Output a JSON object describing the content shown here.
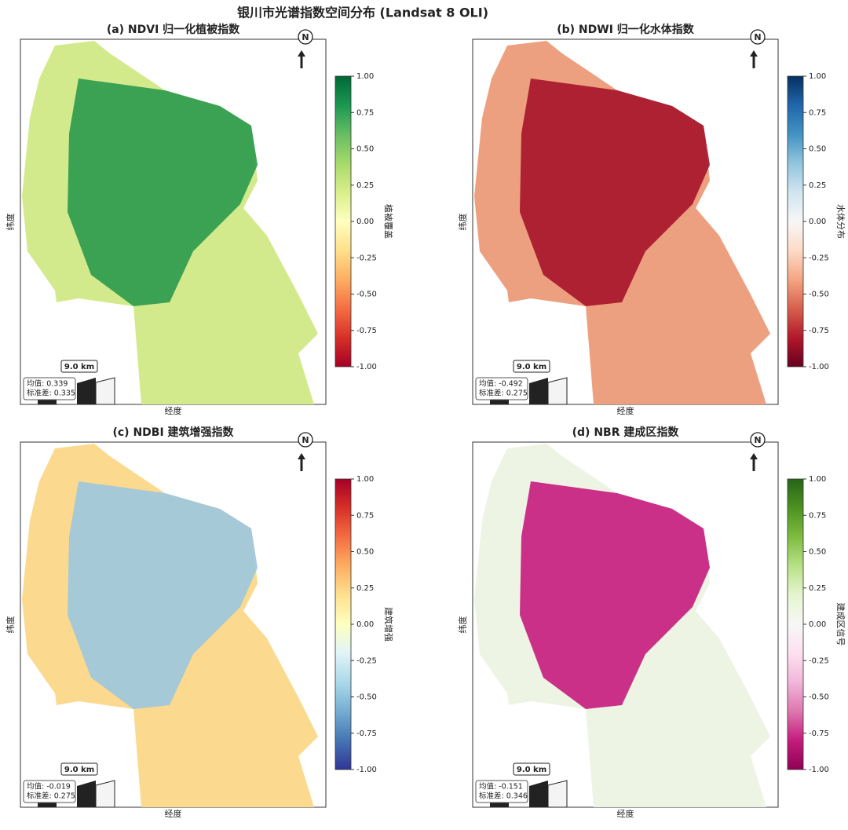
{
  "title": "银川市光谱指数空间分布 (Landsat 8 OLI)",
  "panels": [
    {
      "title": "(a) NDVI 归一化植被指数",
      "xlabel": "经度",
      "ylabel": "纬度",
      "north": "N",
      "scale_label": "9.0 km",
      "stats": [
        "均值: 0.339",
        "标准差: 0.335"
      ],
      "colorbar": {
        "label": "植被覆盖",
        "range": [
          -1,
          1
        ],
        "ticks": [
          {
            "value": 1,
            "label": "1.00"
          },
          {
            "value": 0.75,
            "label": "0.75"
          },
          {
            "value": 0.5,
            "label": "0.50"
          },
          {
            "value": 0.25,
            "label": "0.25"
          },
          {
            "value": 0,
            "label": "0.00"
          },
          {
            "value": -0.25,
            "label": "-0.25"
          },
          {
            "value": -0.5,
            "label": "-0.50"
          },
          {
            "value": -0.75,
            "label": "-0.75"
          },
          {
            "value": -1,
            "label": "-1.00"
          }
        ],
        "colors": [
          "#006837",
          "#1a9850",
          "#66bd63",
          "#a6d96a",
          "#d9ef8b",
          "#ffffbf",
          "#fee08b",
          "#fdae61",
          "#f46d43",
          "#d73027",
          "#a50026"
        ]
      },
      "map_colors": [
        "#d2ea8c",
        "#2a9a4e"
      ]
    },
    {
      "title": "(b) NDWI 归一化水体指数",
      "xlabel": "经度",
      "ylabel": "纬度",
      "north": "N",
      "scale_label": "9.0 km",
      "stats": [
        "均值: -0.492",
        "标准差: 0.275"
      ],
      "colorbar": {
        "label": "水体分布",
        "range": [
          -1,
          1
        ],
        "ticks": [
          {
            "value": 1,
            "label": "1.00"
          },
          {
            "value": 0.75,
            "label": "0.75"
          },
          {
            "value": 0.5,
            "label": "0.50"
          },
          {
            "value": 0.25,
            "label": "0.25"
          },
          {
            "value": 0,
            "label": "0.00"
          },
          {
            "value": -0.25,
            "label": "-0.25"
          },
          {
            "value": -0.5,
            "label": "-0.50"
          },
          {
            "value": -0.75,
            "label": "-0.75"
          },
          {
            "value": -1,
            "label": "-1.00"
          }
        ],
        "colors": [
          "#053061",
          "#2166ac",
          "#4393c3",
          "#92c5de",
          "#d1e5f0",
          "#f7f7f7",
          "#fddbc7",
          "#f4a582",
          "#d6604d",
          "#b2182b",
          "#67001f"
        ]
      },
      "map_colors": [
        "#eda07f",
        "#a5132a"
      ]
    },
    {
      "title": "(c) NDBI 建筑增强指数",
      "xlabel": "经度",
      "ylabel": "纬度",
      "north": "N",
      "scale_label": "9.0 km",
      "stats": [
        "均值: -0.019",
        "标准差: 0.275"
      ],
      "colorbar": {
        "label": "建筑增强",
        "range": [
          -1,
          1
        ],
        "ticks": [
          {
            "value": 1,
            "label": "1.00"
          },
          {
            "value": 0.75,
            "label": "0.75"
          },
          {
            "value": 0.5,
            "label": "0.50"
          },
          {
            "value": 0.25,
            "label": "0.25"
          },
          {
            "value": 0,
            "label": "0.00"
          },
          {
            "value": -0.25,
            "label": "-0.25"
          },
          {
            "value": -0.5,
            "label": "-0.50"
          },
          {
            "value": -0.75,
            "label": "-0.75"
          },
          {
            "value": -1,
            "label": "-1.00"
          }
        ],
        "colors": [
          "#a50026",
          "#d73027",
          "#f46d43",
          "#fdae61",
          "#fee090",
          "#ffffbf",
          "#e0f3f8",
          "#abd9e9",
          "#74add1",
          "#4575b4",
          "#313695"
        ]
      },
      "map_colors": [
        "#fbd98e",
        "#9cc6e0"
      ]
    },
    {
      "title": "(d) NBR 建成区指数",
      "xlabel": "经度",
      "ylabel": "纬度",
      "north": "N",
      "scale_label": "9.0 km",
      "stats": [
        "均值: -0.151",
        "标准差: 0.346"
      ],
      "colorbar": {
        "label": "建成区信号",
        "range": [
          -1,
          1
        ],
        "ticks": [
          {
            "value": 1,
            "label": "1.00"
          },
          {
            "value": 0.75,
            "label": "0.75"
          },
          {
            "value": 0.5,
            "label": "0.50"
          },
          {
            "value": 0.25,
            "label": "0.25"
          },
          {
            "value": 0,
            "label": "0.00"
          },
          {
            "value": -0.25,
            "label": "-0.25"
          },
          {
            "value": -0.5,
            "label": "-0.50"
          },
          {
            "value": -0.75,
            "label": "-0.75"
          },
          {
            "value": -1,
            "label": "-1.00"
          }
        ],
        "colors": [
          "#276419",
          "#4d9221",
          "#7fbc41",
          "#b8e186",
          "#e6f5d0",
          "#f7f7f7",
          "#fde0ef",
          "#f1b6da",
          "#de77ae",
          "#c51b7d",
          "#8e0152"
        ]
      },
      "map_colors": [
        "#eef4e4",
        "#c51b7d"
      ]
    }
  ]
}
